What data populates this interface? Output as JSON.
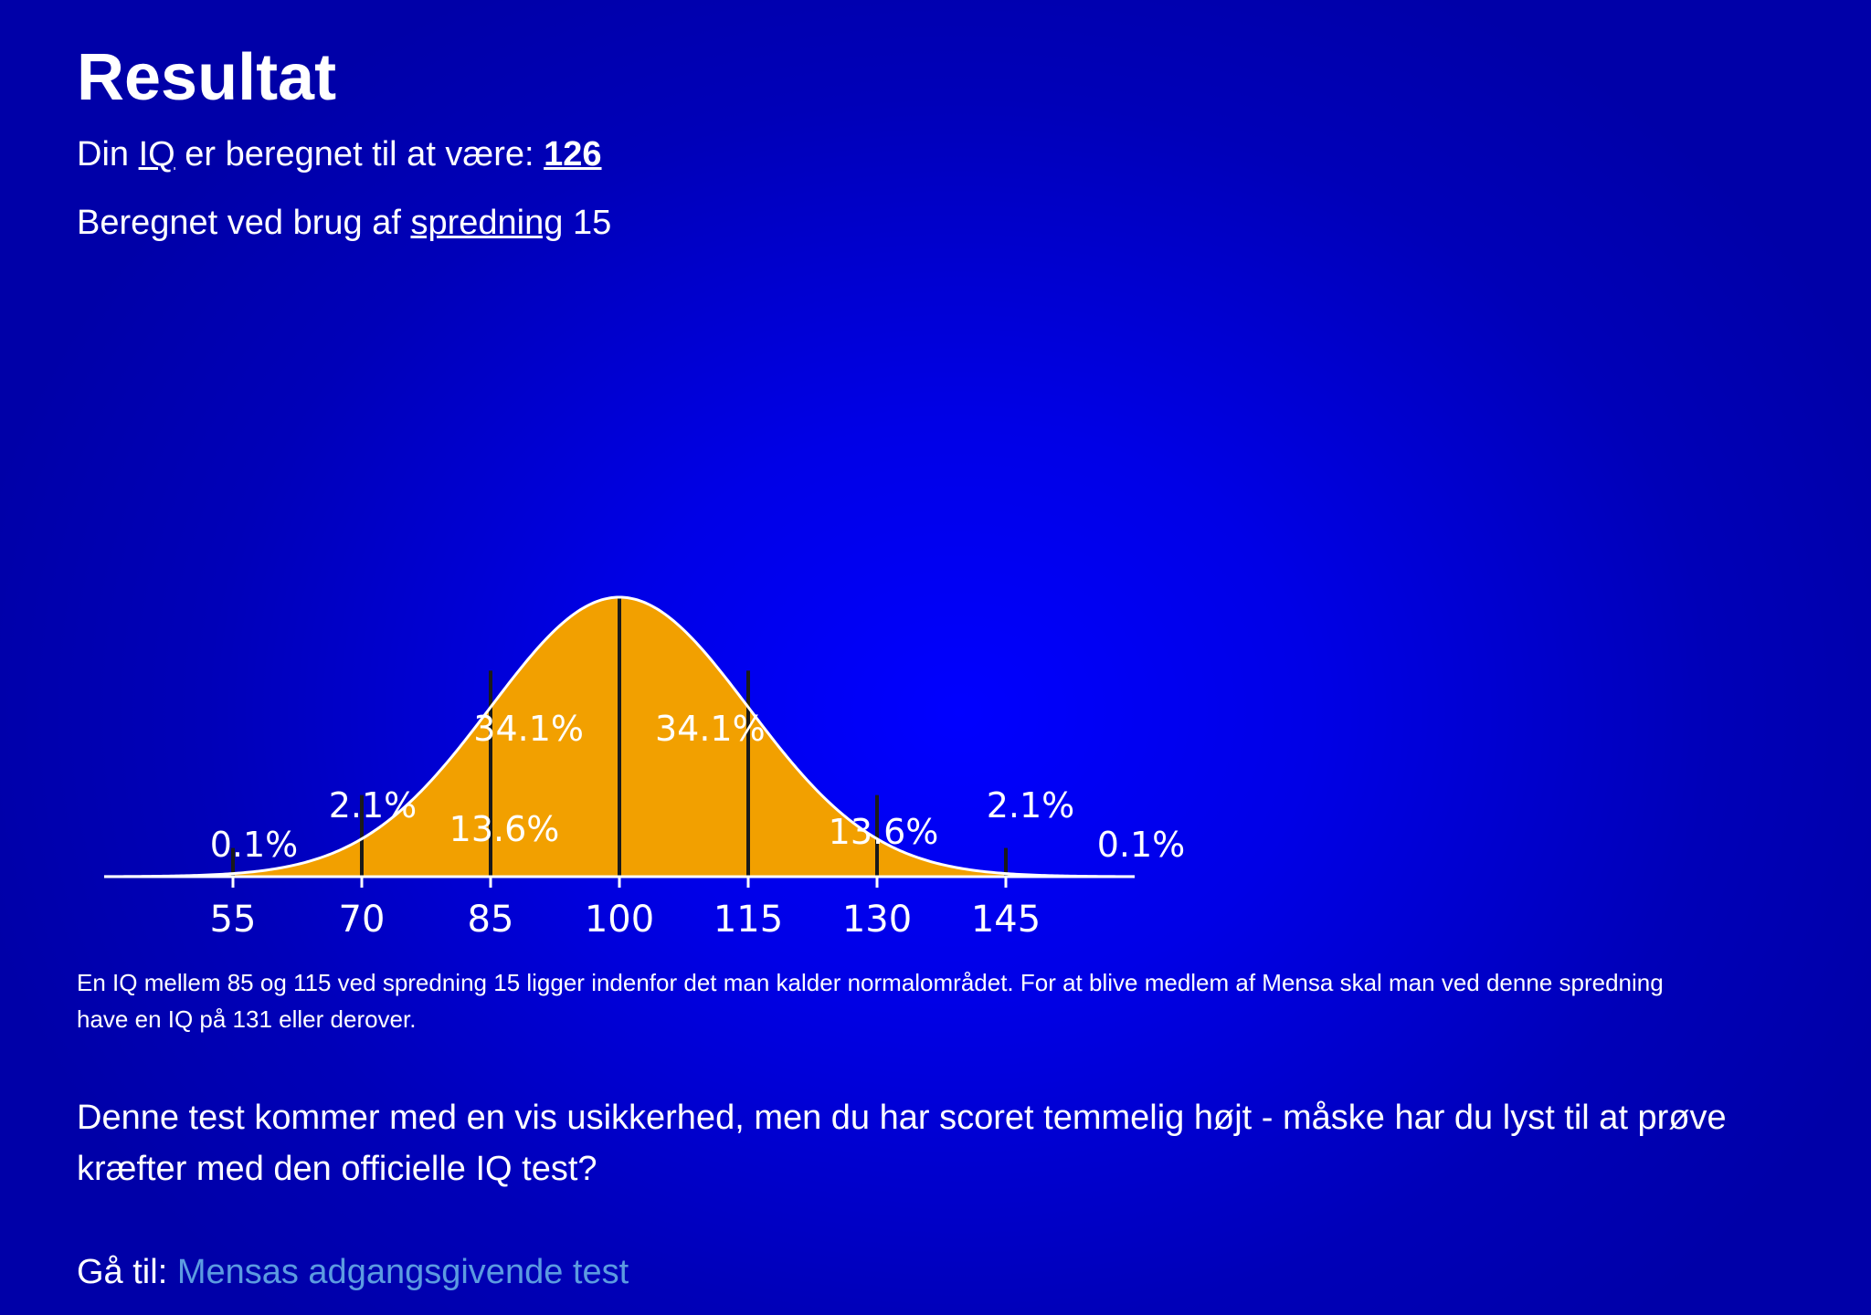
{
  "page": {
    "title": "Resultat",
    "iq_line": {
      "prefix": "Din ",
      "iq_link": "IQ",
      "middle": " er beregnet til at være: ",
      "score": "126"
    },
    "sd_line": {
      "prefix": "Beregnet ved brug af ",
      "sd_link": "spredning",
      "suffix": " 15"
    },
    "note": "En IQ mellem 85 og 115 ved spredning 15 ligger indenfor det man kalder normalområdet. For at blive medlem af Mensa skal man ved denne spredning have en IQ på 131 eller derover.",
    "paragraph": "Denne test kommer med en vis usikkerhed, men du har scoret temmelig højt - måske har du lyst til at prøve kræfter med den officielle IQ test?",
    "goto_label": "Gå til: ",
    "goto_link": "Mensas adgangsgivende test"
  },
  "colors": {
    "background": "#0000e6",
    "curve_fill": "#f2a000",
    "curve_stroke": "#ffffff",
    "divider": "#1a1a1a",
    "link": "#5c9be0"
  },
  "chart_data": {
    "type": "area",
    "mean": 100,
    "sd": 15,
    "x_ticks": [
      "55",
      "70",
      "85",
      "100",
      "115",
      "130",
      "145"
    ],
    "tick_values": [
      55,
      70,
      85,
      100,
      115,
      130,
      145
    ],
    "xlim": [
      40,
      160
    ],
    "regions": [
      {
        "from": 40,
        "to": 55,
        "label": "0.1%"
      },
      {
        "from": 55,
        "to": 70,
        "label": "2.1%"
      },
      {
        "from": 70,
        "to": 85,
        "label": "13.6%"
      },
      {
        "from": 85,
        "to": 100,
        "label": "34.1%"
      },
      {
        "from": 100,
        "to": 115,
        "label": "34.1%"
      },
      {
        "from": 115,
        "to": 130,
        "label": "13.6%"
      },
      {
        "from": 130,
        "to": 145,
        "label": "2.1%"
      },
      {
        "from": 145,
        "to": 160,
        "label": "0.1%"
      }
    ]
  }
}
